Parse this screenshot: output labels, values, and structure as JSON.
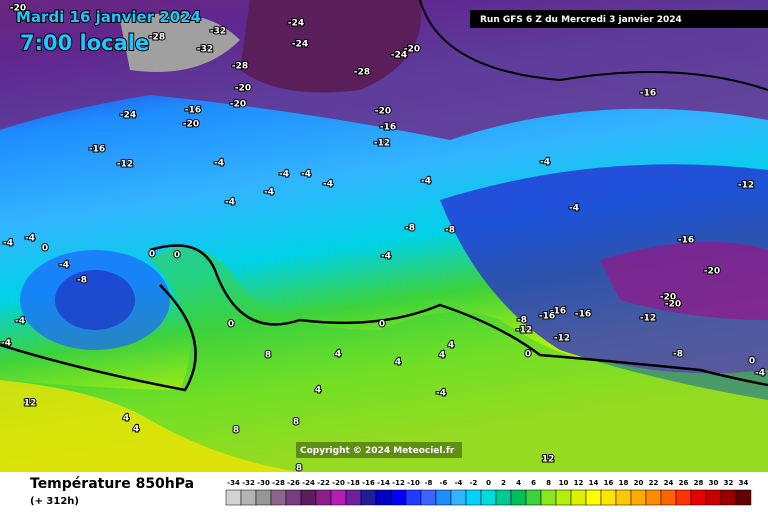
{
  "header": {
    "date": "Mardi 16 janvier 2024",
    "time": "7:00 locale",
    "run": "Run GFS 6 Z du Mercredi 3 janvier 2024"
  },
  "map": {
    "copyright": "Copyright © 2024 Meteociel.fr",
    "labels": [
      -20,
      -28,
      -32,
      -32,
      -28,
      -24,
      -24,
      -28,
      -24,
      -20,
      -16,
      -20,
      -16,
      -12,
      -24,
      -16,
      -20,
      -20,
      -20,
      -16,
      -12,
      -4,
      -4,
      -4,
      -4,
      -4,
      -4,
      -4,
      -4,
      -4,
      -12,
      -16,
      -20,
      -8,
      -8,
      -4,
      -4,
      -4,
      0,
      -4,
      -8,
      0,
      0,
      0,
      0,
      -4,
      -4,
      -16,
      -16,
      -16,
      -8,
      -12,
      -12,
      -12,
      -20,
      -20,
      -8,
      0,
      0,
      -4,
      8,
      4,
      4,
      4,
      4,
      -4,
      4,
      4,
      4,
      8,
      8,
      8,
      12,
      12
    ]
  },
  "footer": {
    "title": "Température 850hPa",
    "lead": "(+ 312h)"
  },
  "legend": {
    "values": [
      -34,
      -32,
      -30,
      -28,
      -26,
      -24,
      -22,
      -20,
      -18,
      -16,
      -14,
      -12,
      -10,
      -8,
      -6,
      -4,
      -2,
      0,
      2,
      4,
      6,
      8,
      10,
      12,
      14,
      16,
      18,
      20,
      22,
      24,
      26,
      28,
      30,
      32,
      34
    ],
    "colors": [
      "#d2d2d2",
      "#b4b4b4",
      "#969696",
      "#8c648c",
      "#783c82",
      "#5a1e5a",
      "#8c1e8c",
      "#b41eb4",
      "#6e1ea0",
      "#1e1e96",
      "#0000c8",
      "#0000ff",
      "#1e3cff",
      "#3c64ff",
      "#1e8cff",
      "#32b4ff",
      "#00d2ff",
      "#00dcdc",
      "#00c896",
      "#00be5a",
      "#3cd23c",
      "#8ce61e",
      "#b4f00a",
      "#dcf000",
      "#ffff00",
      "#ffe600",
      "#ffc800",
      "#ffaa00",
      "#ff8c00",
      "#ff6400",
      "#ff3200",
      "#e60000",
      "#c80000",
      "#960000",
      "#640000"
    ]
  }
}
